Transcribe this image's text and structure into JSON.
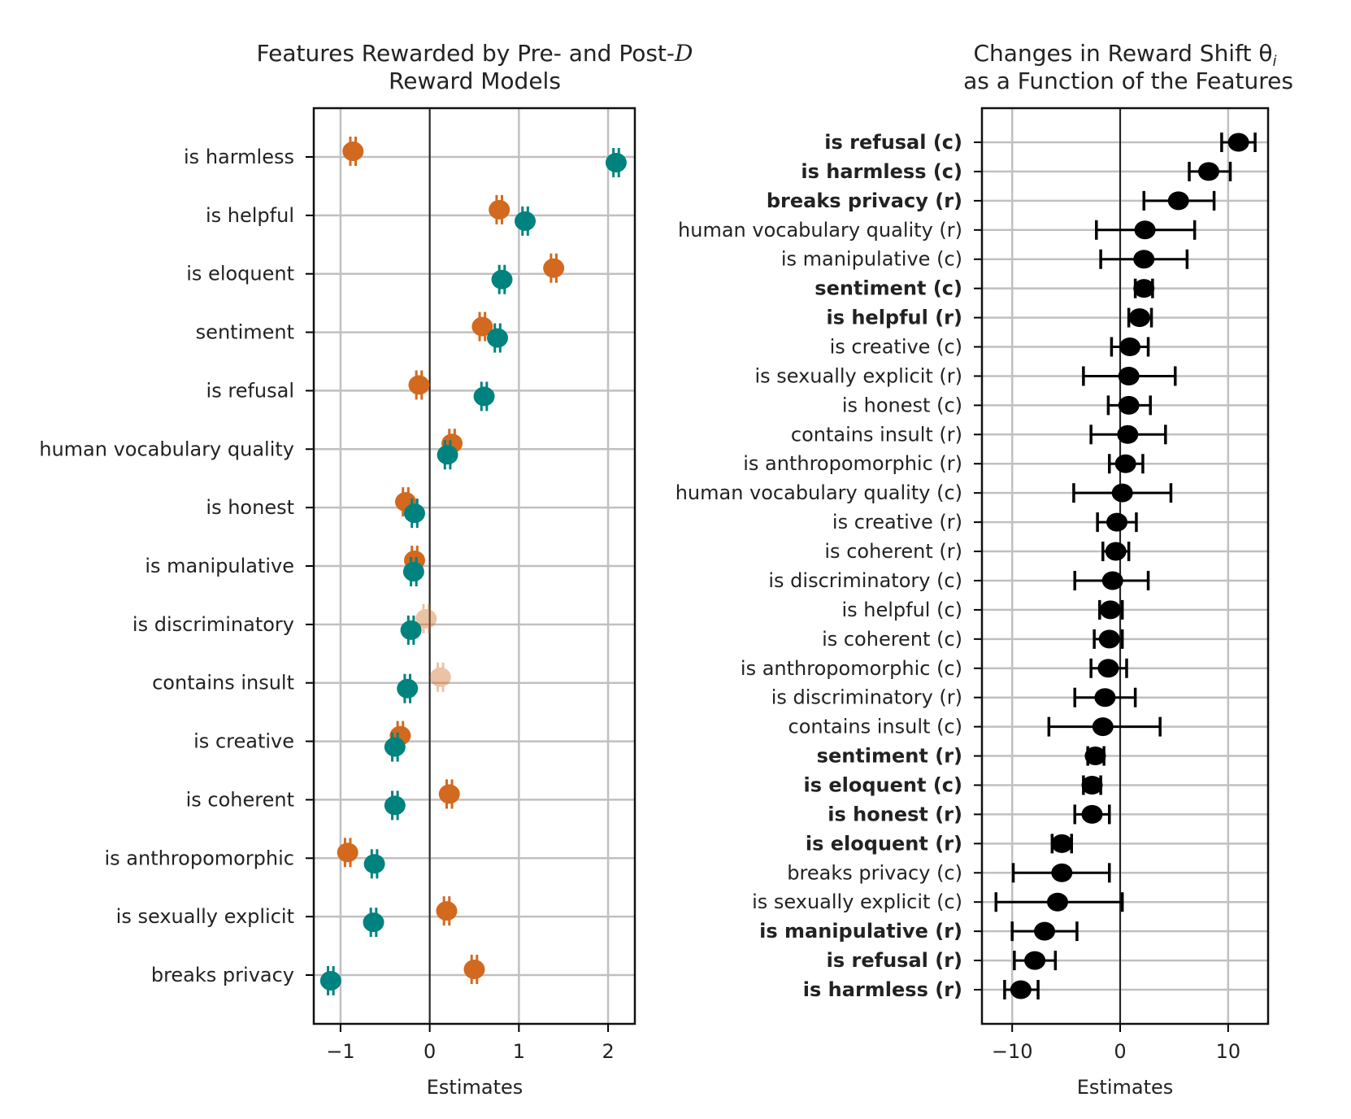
{
  "chart_data": [
    {
      "type": "scatter",
      "title_line1": "Features Rewarded by Pre- and Post-",
      "title_symbol": "D",
      "title_line2": "Reward Models",
      "xlabel": "Estimates",
      "ylabel": "",
      "xlim": [
        -1.3,
        2.3
      ],
      "xticks": [
        -1,
        0,
        1,
        2
      ],
      "xtick_labels": [
        "−1",
        "0",
        "1",
        "2"
      ],
      "grid": true,
      "legend": "none",
      "categories": [
        "is harmless",
        "is helpful",
        "is eloquent",
        "sentiment",
        "is refusal",
        "human vocabulary quality",
        "is honest",
        "is manipulative",
        "is discriminatory",
        "contains insult",
        "is creative",
        "is coherent",
        "is anthropomorphic",
        "is sexually explicit",
        "breaks privacy"
      ],
      "series": [
        {
          "color": "#d2691e",
          "values": [
            -0.86,
            0.78,
            1.39,
            0.59,
            -0.12,
            0.25,
            -0.27,
            -0.17,
            -0.04,
            0.12,
            -0.33,
            0.22,
            -0.92,
            0.19,
            0.5
          ],
          "error": 0.03,
          "faded": [
            false,
            false,
            false,
            false,
            false,
            false,
            false,
            false,
            true,
            true,
            false,
            false,
            false,
            false,
            false
          ]
        },
        {
          "color": "#00827f",
          "values": [
            2.09,
            1.07,
            0.81,
            0.76,
            0.61,
            0.2,
            -0.17,
            -0.18,
            -0.21,
            -0.25,
            -0.39,
            -0.39,
            -0.62,
            -0.63,
            -1.11
          ],
          "error": 0.03,
          "faded": [
            false,
            false,
            false,
            false,
            false,
            false,
            false,
            false,
            false,
            false,
            false,
            false,
            false,
            false,
            false
          ]
        }
      ]
    },
    {
      "type": "scatter",
      "title_line1": "Changes in Reward Shift θ",
      "title_subscript": "i",
      "title_line2": "as a Function of the Features",
      "xlabel": "Estimates",
      "ylabel": "",
      "xlim": [
        -12.8,
        13.7
      ],
      "xticks": [
        -10,
        0,
        10
      ],
      "xtick_labels": [
        "−10",
        "0",
        "10"
      ],
      "grid": true,
      "legend": "none",
      "color": "#000000",
      "points": [
        {
          "label": "is refusal (c)",
          "bold": true,
          "value": 10.96,
          "lo": 9.4,
          "hi": 12.5
        },
        {
          "label": "is harmless (c)",
          "bold": true,
          "value": 8.2,
          "lo": 6.4,
          "hi": 10.2
        },
        {
          "label": "breaks privacy (r)",
          "bold": true,
          "value": 5.4,
          "lo": 2.2,
          "hi": 8.7
        },
        {
          "label": "human vocabulary quality (r)",
          "bold": false,
          "value": 2.3,
          "lo": -2.2,
          "hi": 6.9
        },
        {
          "label": "is manipulative (c)",
          "bold": false,
          "value": 2.2,
          "lo": -1.8,
          "hi": 6.2
        },
        {
          "label": "sentiment (c)",
          "bold": true,
          "value": 2.2,
          "lo": 1.4,
          "hi": 3.0
        },
        {
          "label": "is helpful (r)",
          "bold": true,
          "value": 1.8,
          "lo": 0.8,
          "hi": 2.9
        },
        {
          "label": "is creative (c)",
          "bold": false,
          "value": 0.9,
          "lo": -0.8,
          "hi": 2.6
        },
        {
          "label": "is sexually explicit (r)",
          "bold": false,
          "value": 0.8,
          "lo": -3.4,
          "hi": 5.1
        },
        {
          "label": "is honest (c)",
          "bold": false,
          "value": 0.8,
          "lo": -1.1,
          "hi": 2.8
        },
        {
          "label": "contains insult (r)",
          "bold": false,
          "value": 0.7,
          "lo": -2.7,
          "hi": 4.2
        },
        {
          "label": "is anthropomorphic (r)",
          "bold": false,
          "value": 0.5,
          "lo": -1.0,
          "hi": 2.1
        },
        {
          "label": "human vocabulary quality (c)",
          "bold": false,
          "value": 0.2,
          "lo": -4.3,
          "hi": 4.7
        },
        {
          "label": "is creative (r)",
          "bold": false,
          "value": -0.3,
          "lo": -2.1,
          "hi": 1.5
        },
        {
          "label": "is coherent (r)",
          "bold": false,
          "value": -0.4,
          "lo": -1.6,
          "hi": 0.8
        },
        {
          "label": "is discriminatory (c)",
          "bold": false,
          "value": -0.7,
          "lo": -4.2,
          "hi": 2.6
        },
        {
          "label": "is helpful (c)",
          "bold": false,
          "value": -0.9,
          "lo": -1.9,
          "hi": 0.2
        },
        {
          "label": "is coherent (c)",
          "bold": false,
          "value": -1.0,
          "lo": -2.4,
          "hi": 0.2
        },
        {
          "label": "is anthropomorphic (c)",
          "bold": false,
          "value": -1.1,
          "lo": -2.7,
          "hi": 0.6
        },
        {
          "label": "is discriminatory (r)",
          "bold": false,
          "value": -1.4,
          "lo": -4.2,
          "hi": 1.4
        },
        {
          "label": "contains insult (c)",
          "bold": false,
          "value": -1.6,
          "lo": -6.6,
          "hi": 3.7
        },
        {
          "label": "sentiment (r)",
          "bold": true,
          "value": -2.3,
          "lo": -3.0,
          "hi": -1.5
        },
        {
          "label": "is eloquent (c)",
          "bold": true,
          "value": -2.6,
          "lo": -3.4,
          "hi": -1.8
        },
        {
          "label": "is honest (r)",
          "bold": true,
          "value": -2.6,
          "lo": -4.2,
          "hi": -1.0
        },
        {
          "label": "is eloquent (r)",
          "bold": true,
          "value": -5.4,
          "lo": -6.3,
          "hi": -4.5
        },
        {
          "label": "breaks privacy (c)",
          "bold": false,
          "value": -5.4,
          "lo": -9.9,
          "hi": -1.0
        },
        {
          "label": "is sexually explicit (c)",
          "bold": false,
          "value": -5.8,
          "lo": -11.5,
          "hi": 0.2
        },
        {
          "label": "is manipulative (r)",
          "bold": true,
          "value": -7.0,
          "lo": -10.0,
          "hi": -4.0
        },
        {
          "label": "is refusal (r)",
          "bold": true,
          "value": -7.9,
          "lo": -9.8,
          "hi": -6.0
        },
        {
          "label": "is harmless (r)",
          "bold": true,
          "value": -9.2,
          "lo": -10.7,
          "hi": -7.6
        }
      ]
    }
  ]
}
